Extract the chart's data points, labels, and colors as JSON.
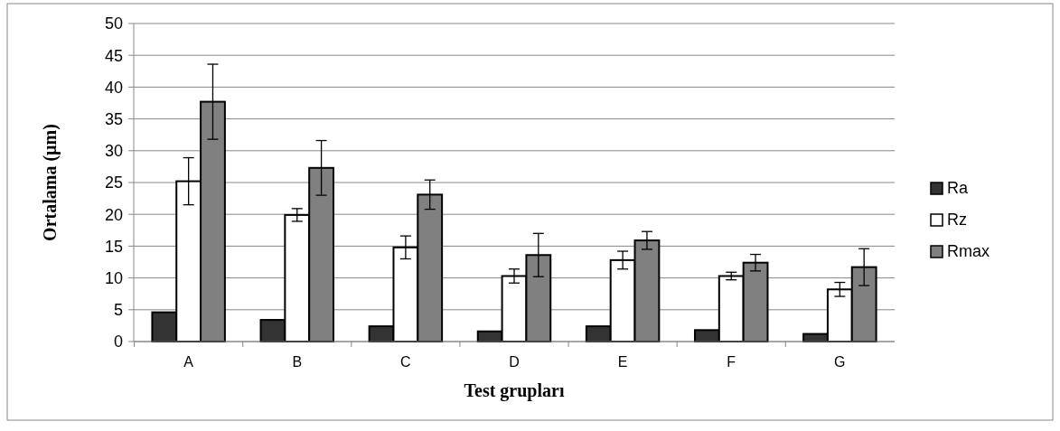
{
  "chart_data": {
    "type": "bar",
    "xlabel": "Test grupları",
    "ylabel": "Ortalama (µm)",
    "categories": [
      "A",
      "B",
      "C",
      "D",
      "E",
      "F",
      "G"
    ],
    "series": [
      {
        "name": "Ra",
        "color": "#333333",
        "values": [
          4.6,
          3.4,
          2.4,
          1.6,
          2.4,
          1.8,
          1.2
        ]
      },
      {
        "name": "Rz",
        "color": "#ffffff",
        "values": [
          25.2,
          19.9,
          14.8,
          10.3,
          12.8,
          10.3,
          8.2
        ],
        "errors": [
          3.7,
          1,
          1.8,
          1.1,
          1.4,
          0.6,
          1.1
        ]
      },
      {
        "name": "Rmax",
        "color": "#808080",
        "values": [
          37.7,
          27.3,
          23.1,
          13.6,
          15.9,
          12.4,
          11.7
        ],
        "errors": [
          5.9,
          4.3,
          2.3,
          3.4,
          1.4,
          1.3,
          2.9
        ]
      }
    ],
    "ylim": [
      0,
      50
    ],
    "yticks": [
      0,
      5,
      10,
      15,
      20,
      25,
      30,
      35,
      40,
      45,
      50
    ],
    "grid": "y",
    "legend": "right"
  }
}
